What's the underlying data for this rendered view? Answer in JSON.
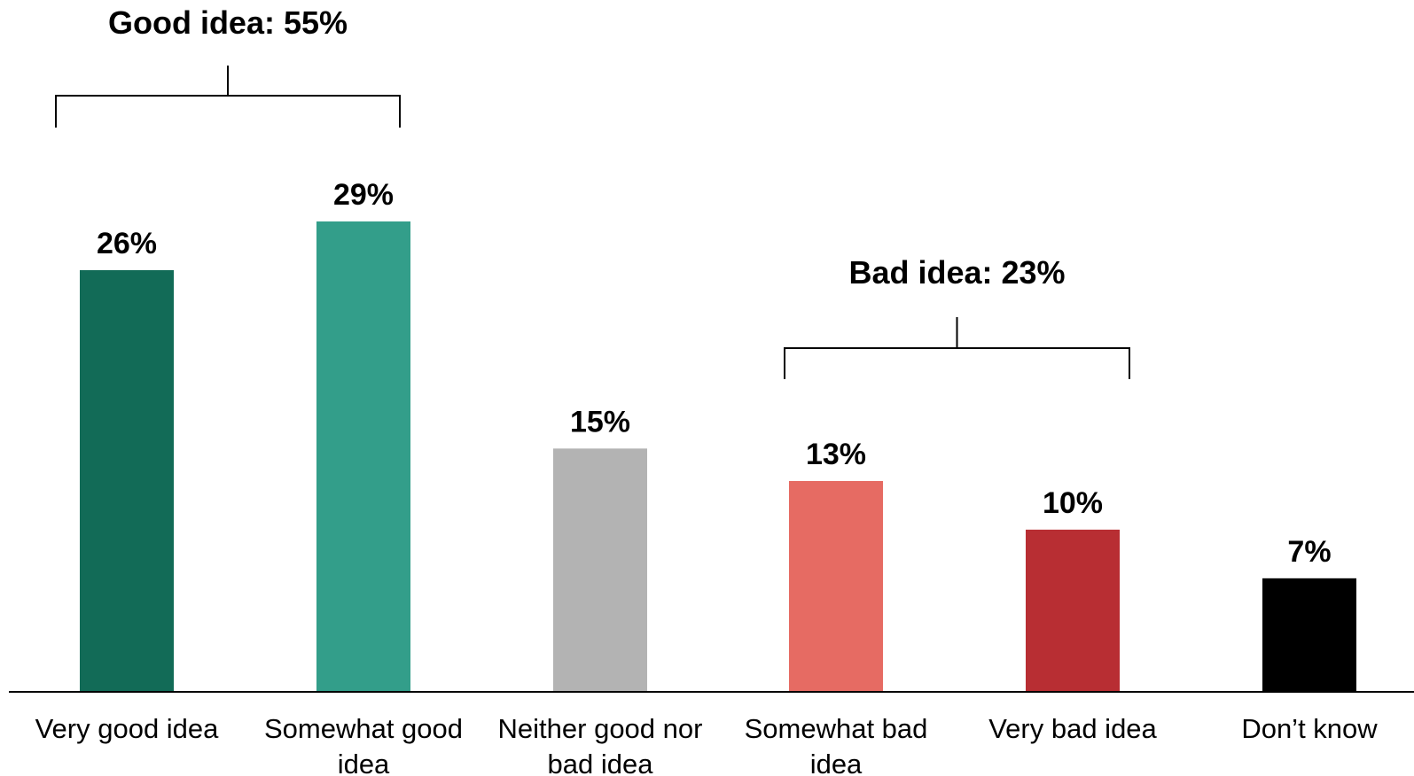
{
  "chart_data": {
    "type": "bar",
    "categories": [
      [
        "Very good idea"
      ],
      [
        "Somewhat good",
        "idea"
      ],
      [
        "Neither good nor",
        "bad idea"
      ],
      [
        "Somewhat bad",
        "idea"
      ],
      [
        "Very bad idea"
      ],
      [
        "Don’t know"
      ]
    ],
    "values": [
      26,
      29,
      15,
      13,
      10,
      7
    ],
    "value_labels": [
      "26%",
      "29%",
      "15%",
      "13%",
      "10%",
      "7%"
    ],
    "colors": [
      "#126b57",
      "#339e8a",
      "#b3b3b3",
      "#e66b63",
      "#b82e33",
      "#000000"
    ],
    "ylim": [
      0,
      29
    ],
    "grid": false,
    "brackets": [
      {
        "label": "Good idea: 55%",
        "from_category": 0,
        "to_category": 1
      },
      {
        "label": "Bad idea: 23%",
        "from_category": 3,
        "to_category": 4
      }
    ]
  }
}
